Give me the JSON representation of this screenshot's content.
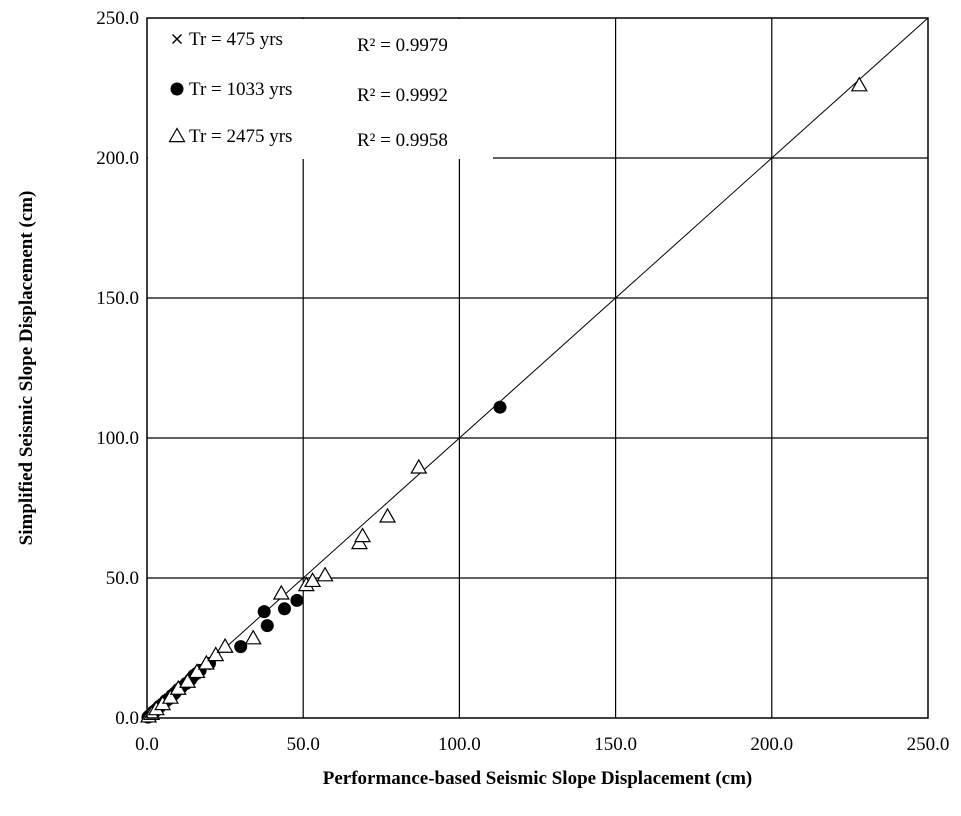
{
  "chart_data": {
    "type": "scatter",
    "title": "",
    "xlabel": "Performance-based Seismic Slope Displacement (cm)",
    "ylabel": "Simplified Seismic Slope Displacement (cm)",
    "xlim": [
      0,
      250
    ],
    "ylim": [
      0,
      250
    ],
    "xticks": [
      "0.0",
      "50.0",
      "100.0",
      "150.0",
      "200.0",
      "250.0"
    ],
    "yticks": [
      "0.0",
      "50.0",
      "100.0",
      "150.0",
      "200.0",
      "250.0"
    ],
    "grid": true,
    "legend_position": "top-left",
    "reference_line": {
      "from": [
        0,
        0
      ],
      "to": [
        250,
        250
      ]
    },
    "series": [
      {
        "name": "Tr = 475 yrs",
        "marker": "x",
        "marker_icon": "cross-marker-icon",
        "r2_label": "R² = 0.9979",
        "points": [
          [
            0.2,
            0.2
          ],
          [
            0.5,
            0.4
          ],
          [
            0.8,
            0.9
          ],
          [
            1.2,
            1.1
          ],
          [
            1.6,
            1.5
          ],
          [
            2.0,
            2.1
          ],
          [
            2.5,
            2.4
          ],
          [
            3.0,
            2.9
          ],
          [
            3.5,
            3.6
          ],
          [
            4.2,
            4.0
          ],
          [
            5.0,
            5.1
          ],
          [
            6.0,
            5.8
          ],
          [
            7.0,
            7.1
          ],
          [
            8.5,
            8.3
          ]
        ]
      },
      {
        "name": "Tr = 1033 yrs",
        "marker": "filled-circle",
        "marker_icon": "filled-circle-marker-icon",
        "r2_label": "R² = 0.9992",
        "points": [
          [
            0.3,
            0.3
          ],
          [
            0.6,
            0.5
          ],
          [
            1.0,
            1.0
          ],
          [
            1.5,
            1.4
          ],
          [
            2.0,
            2.2
          ],
          [
            2.5,
            2.3
          ],
          [
            3.0,
            3.1
          ],
          [
            3.5,
            3.4
          ],
          [
            4.0,
            4.2
          ],
          [
            5.0,
            5.0
          ],
          [
            6.0,
            6.2
          ],
          [
            7.0,
            6.8
          ],
          [
            8.0,
            8.1
          ],
          [
            9.0,
            9.0
          ],
          [
            10.0,
            10.2
          ],
          [
            11.0,
            11.0
          ],
          [
            12.5,
            12.3
          ],
          [
            14.0,
            13.8
          ],
          [
            15.0,
            15.2
          ],
          [
            16.0,
            16.0
          ],
          [
            17.0,
            17.0
          ],
          [
            20.0,
            19.5
          ],
          [
            30.0,
            25.5
          ],
          [
            37.5,
            38.0
          ],
          [
            38.5,
            33.0
          ],
          [
            44.0,
            39.0
          ],
          [
            48.0,
            42.0
          ],
          [
            113.0,
            111.0
          ]
        ]
      },
      {
        "name": "Tr = 2475 yrs",
        "marker": "triangle",
        "marker_icon": "open-triangle-marker-icon",
        "r2_label": "R² = 0.9958",
        "points": [
          [
            0.5,
            0.6
          ],
          [
            1.5,
            1.5
          ],
          [
            3.0,
            3.2
          ],
          [
            5.0,
            5.0
          ],
          [
            7.5,
            7.3
          ],
          [
            10.0,
            10.5
          ],
          [
            13.0,
            13.0
          ],
          [
            16.0,
            16.5
          ],
          [
            19.0,
            19.5
          ],
          [
            22.0,
            22.5
          ],
          [
            25.0,
            25.5
          ],
          [
            34.0,
            28.5
          ],
          [
            43.0,
            44.5
          ],
          [
            51.0,
            47.5
          ],
          [
            53.0,
            49.0
          ],
          [
            57.0,
            51.0
          ],
          [
            68.0,
            62.5
          ],
          [
            69.0,
            65.0
          ],
          [
            77.0,
            72.0
          ],
          [
            87.0,
            89.5
          ],
          [
            228.0,
            226.0
          ]
        ]
      }
    ]
  }
}
